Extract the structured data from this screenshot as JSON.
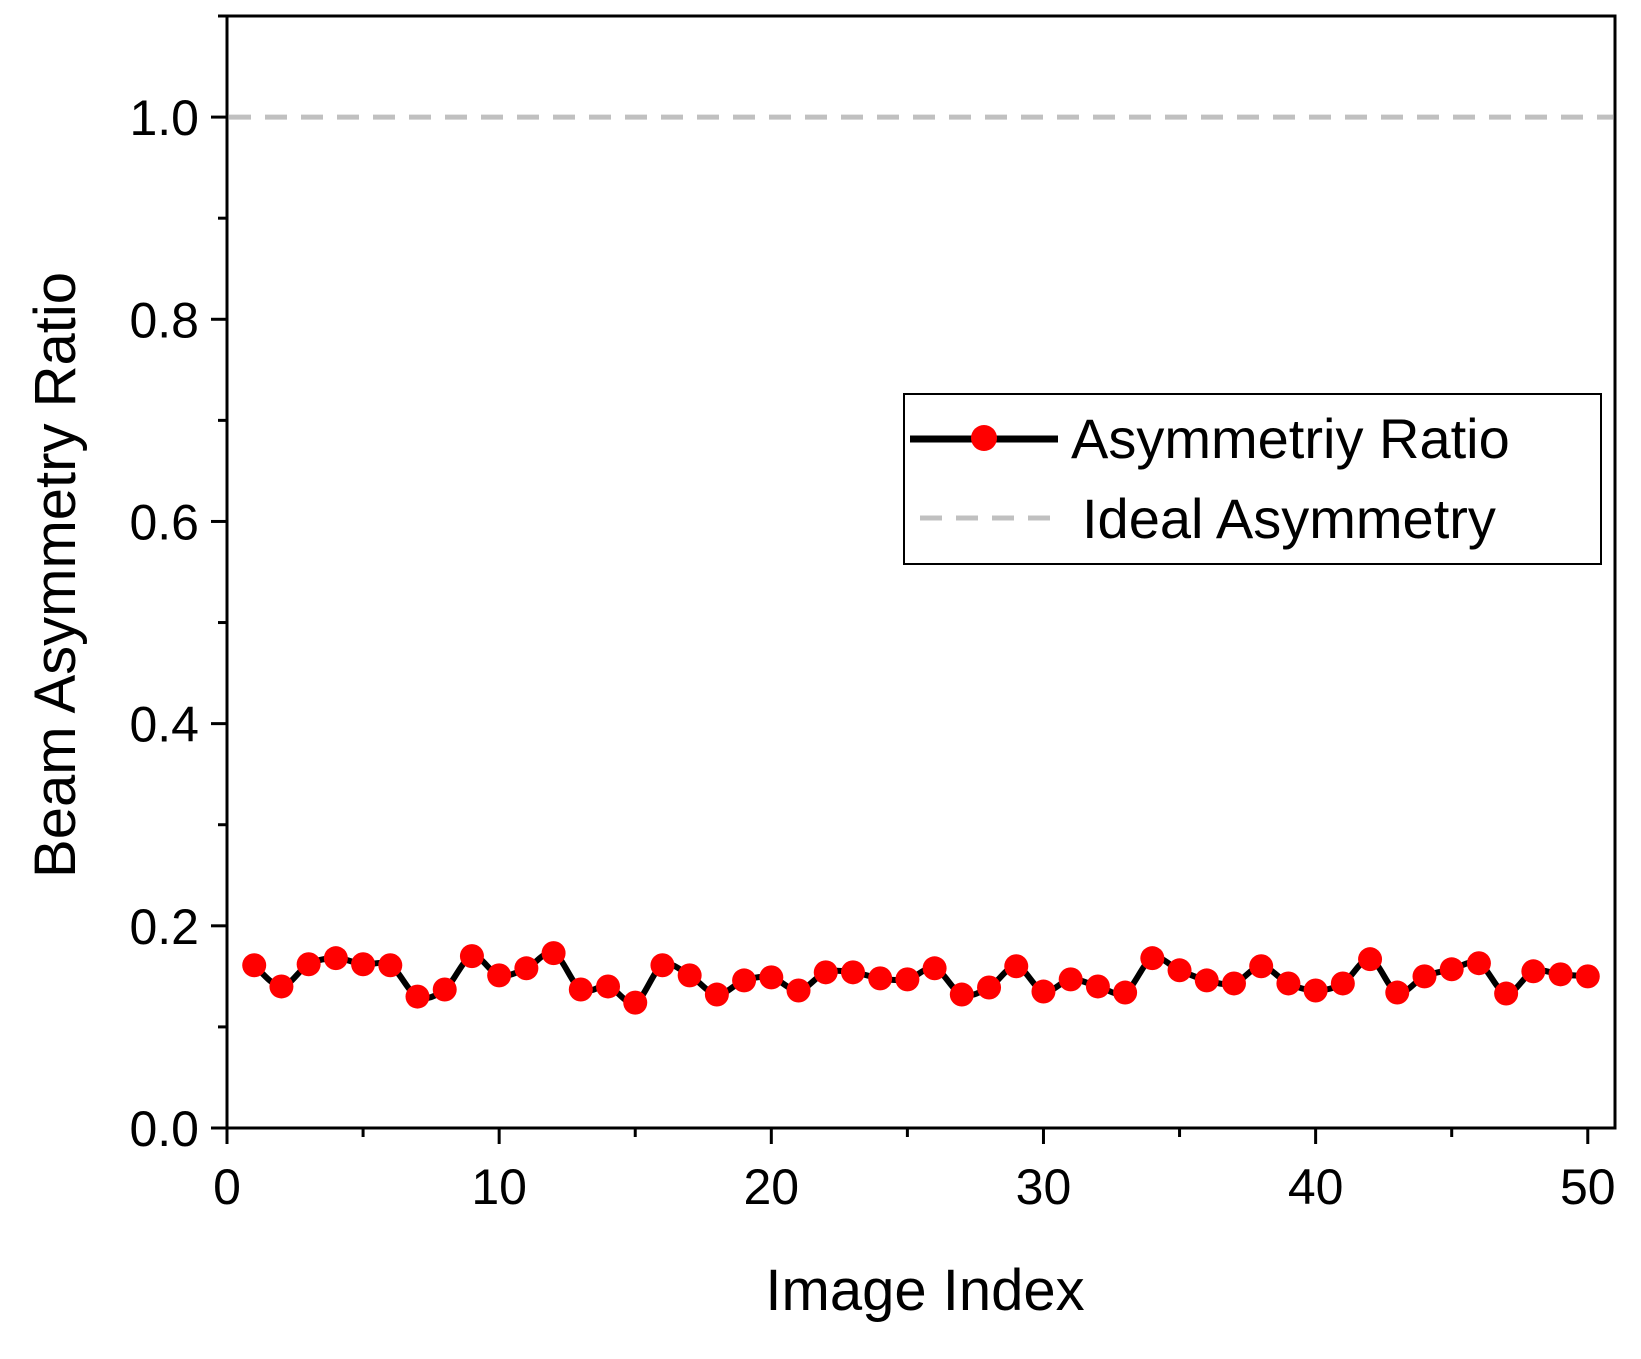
{
  "chart_data": {
    "type": "line",
    "xlabel": "Image Index",
    "ylabel": "Beam Asymmetry Ratio",
    "xlim": [
      0,
      51
    ],
    "ylim": [
      0.0,
      1.1
    ],
    "xticks": [
      0,
      10,
      20,
      30,
      40,
      50
    ],
    "xtick_labels": [
      "0",
      "10",
      "20",
      "30",
      "40",
      "50"
    ],
    "yticks": [
      0.0,
      0.2,
      0.4,
      0.6,
      0.8,
      1.0
    ],
    "ytick_labels": [
      "0.0",
      "0.2",
      "0.4",
      "0.6",
      "0.8",
      "1.0"
    ],
    "grid": false,
    "legend_position": "right",
    "series": [
      {
        "name": "Asymmetriy Ratio",
        "style": "line-marker",
        "line_color": "#000000",
        "marker_color": "#ff0000",
        "x": [
          1,
          2,
          3,
          4,
          5,
          6,
          7,
          8,
          9,
          10,
          11,
          12,
          13,
          14,
          15,
          16,
          17,
          18,
          19,
          20,
          21,
          22,
          23,
          24,
          25,
          26,
          27,
          28,
          29,
          30,
          31,
          32,
          33,
          34,
          35,
          36,
          37,
          38,
          39,
          40,
          41,
          42,
          43,
          44,
          45,
          46,
          47,
          48,
          49,
          50
        ],
        "values": [
          0.161,
          0.14,
          0.162,
          0.168,
          0.162,
          0.161,
          0.13,
          0.137,
          0.17,
          0.151,
          0.158,
          0.173,
          0.137,
          0.14,
          0.124,
          0.161,
          0.151,
          0.132,
          0.146,
          0.149,
          0.136,
          0.154,
          0.154,
          0.148,
          0.147,
          0.158,
          0.132,
          0.139,
          0.16,
          0.135,
          0.147,
          0.14,
          0.134,
          0.168,
          0.156,
          0.146,
          0.143,
          0.16,
          0.143,
          0.136,
          0.143,
          0.167,
          0.134,
          0.15,
          0.157,
          0.163,
          0.133,
          0.155,
          0.152,
          0.15
        ]
      },
      {
        "name": "Ideal Asymmetry",
        "style": "dashed",
        "line_color": "#c0c0c0",
        "x": [
          0,
          51
        ],
        "values": [
          1.0,
          1.0
        ]
      }
    ]
  }
}
